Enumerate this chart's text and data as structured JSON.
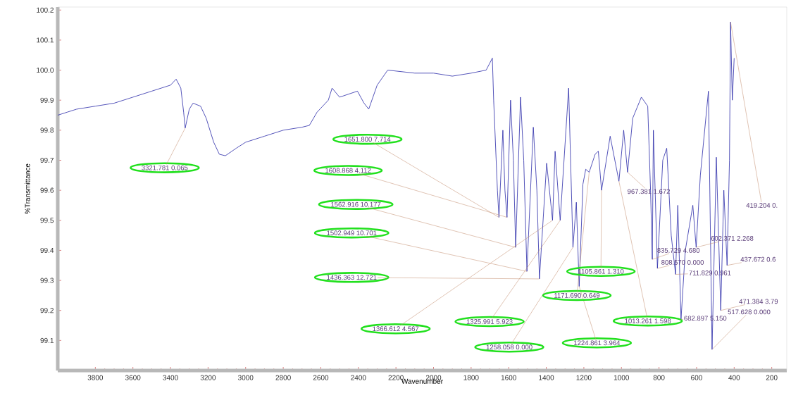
{
  "chart_data": {
    "type": "line",
    "xlabel": "Wavenumber",
    "ylabel": "%Transmittance",
    "xlim": [
      4000,
      120
    ],
    "ylim": [
      99.0,
      100.21
    ],
    "xticks": [
      3800,
      3600,
      3400,
      3200,
      3000,
      2800,
      2600,
      2400,
      2200,
      2000,
      1800,
      1600,
      1400,
      1200,
      1000,
      800,
      600,
      400,
      200
    ],
    "yticks": [
      99.1,
      99.2,
      99.3,
      99.4,
      99.5,
      99.6,
      99.7,
      99.8,
      99.9,
      {
        "value": 100,
        "label": "100.0"
      },
      100.1,
      100.2
    ],
    "grid": false,
    "legend": false,
    "marker": "none",
    "line_style": "solid",
    "series": [
      {
        "color": "#2a2aa8",
        "x": [
          4000,
          3950,
          3900,
          3800,
          3700,
          3600,
          3500,
          3400,
          3370,
          3345,
          3330,
          3321.781,
          3300,
          3280,
          3240,
          3210,
          3170,
          3140,
          3108,
          3050,
          3000,
          2900,
          2800,
          2700,
          2661,
          2620,
          2560,
          2540,
          2500,
          2405,
          2370,
          2345,
          2300,
          2244,
          2100,
          2000,
          1900,
          1800,
          1720,
          1687,
          1680,
          1660,
          1651.8,
          1631,
          1620,
          1608.868,
          1590,
          1575,
          1562.916,
          1537,
          1520,
          1502.949,
          1469,
          1450,
          1436.363,
          1398,
          1366.612,
          1353,
          1325.991,
          1281,
          1258.058,
          1240,
          1224.861,
          1205,
          1190,
          1171.69,
          1140,
          1123,
          1105.861,
          1060,
          1013.261,
          988,
          967.381,
          940,
          894,
          860,
          845,
          835.729,
          830,
          808.57,
          780,
          759,
          735,
          711.829,
          700,
          682.897,
          660,
          620,
          602.371,
          580,
          537,
          525,
          517.628,
          495,
          471.384,
          455,
          437.672,
          425,
          419.204,
          410,
          400
        ],
        "values": [
          99.85,
          99.86,
          99.87,
          99.88,
          99.89,
          99.91,
          99.93,
          99.95,
          99.97,
          99.94,
          99.86,
          99.807,
          99.87,
          99.89,
          99.88,
          99.84,
          99.76,
          99.72,
          99.715,
          99.74,
          99.76,
          99.78,
          99.8,
          99.81,
          99.816,
          99.86,
          99.9,
          99.94,
          99.91,
          99.93,
          99.89,
          99.87,
          99.95,
          100.0,
          99.99,
          99.99,
          99.98,
          99.99,
          100.0,
          100.04,
          99.9,
          99.6,
          99.51,
          99.8,
          99.6,
          99.51,
          99.9,
          99.7,
          99.41,
          99.91,
          99.7,
          99.33,
          99.81,
          99.6,
          99.305,
          99.69,
          99.5,
          99.73,
          99.5,
          99.94,
          99.41,
          99.56,
          99.28,
          99.62,
          99.67,
          99.66,
          99.72,
          99.73,
          99.6,
          99.78,
          99.63,
          99.8,
          99.66,
          99.84,
          99.91,
          99.88,
          99.6,
          99.37,
          99.8,
          99.34,
          99.7,
          99.74,
          99.45,
          99.32,
          99.55,
          99.17,
          99.4,
          99.55,
          99.41,
          99.65,
          99.93,
          null,
          99.07,
          99.71,
          99.2,
          99.6,
          99.35,
          99.7,
          100.16,
          99.9,
          100.04
        ]
      }
    ],
    "annotations": [
      {
        "text": "3321.781  0.065",
        "x": 3321.781,
        "y": 99.807
      },
      {
        "text": "1651.800  7.714",
        "x": 1651.8,
        "y": 99.51
      },
      {
        "text": "1608.868  4.112",
        "x": 1608.868,
        "y": 99.51
      },
      {
        "text": "1562.916  10.177",
        "x": 1562.916,
        "y": 99.41
      },
      {
        "text": "1502.949  10.701",
        "x": 1502.949,
        "y": 99.33
      },
      {
        "text": "1436.363  12.721",
        "x": 1436.363,
        "y": 99.305
      },
      {
        "text": "1366.612  4.567",
        "x": 1366.612,
        "y": 99.5
      },
      {
        "text": "1325.991  5.923",
        "x": 1325.991,
        "y": 99.5
      },
      {
        "text": "1258.058  0.000",
        "x": 1258.058,
        "y": 99.41
      },
      {
        "text": "1224.861  3.964",
        "x": 1224.861,
        "y": 99.28
      },
      {
        "text": "1171.690  0.649",
        "x": 1171.69,
        "y": 99.66
      },
      {
        "text": "1105.861  1.310",
        "x": 1105.861,
        "y": 99.6
      },
      {
        "text": "1013.261  1.598",
        "x": 1013.261,
        "y": 99.63
      },
      {
        "text": "967.381  1.672",
        "x": 967.381,
        "y": 99.66
      },
      {
        "text": "835.729  4.680",
        "x": 835.729,
        "y": 99.37
      },
      {
        "text": "808.570  0.000",
        "x": 808.57,
        "y": 99.34
      },
      {
        "text": "711.829  0.961",
        "x": 711.829,
        "y": 99.32
      },
      {
        "text": "682.897  5.150",
        "x": 682.897,
        "y": 99.17
      },
      {
        "text": "602.371  2.268",
        "x": 602.371,
        "y": 99.41
      },
      {
        "text": "437.672  0.6",
        "x": 437.672,
        "y": 99.35
      },
      {
        "text": "471.384  3.79",
        "x": 471.384,
        "y": 99.2
      },
      {
        "text": "517.628  0.000",
        "x": 517.628,
        "y": 99.07
      },
      {
        "text": "419.204  0.",
        "x": 419.204,
        "y": 100.16
      }
    ]
  }
}
